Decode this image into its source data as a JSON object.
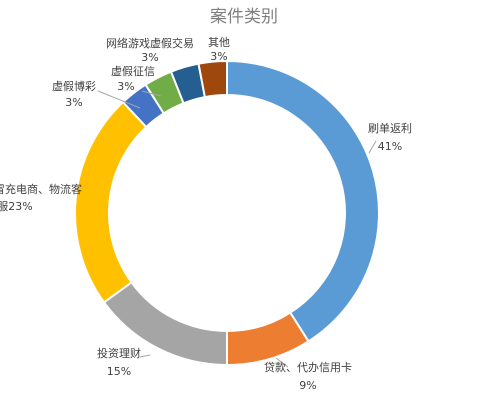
{
  "chart_data": {
    "type": "pie",
    "title": "案件类别",
    "donut": true,
    "slices": [
      {
        "label": "刷单返利",
        "percent_label": "41%",
        "value": 41,
        "color": "#5b9bd5"
      },
      {
        "label": "贷款、代办信用卡",
        "percent_label": "9%",
        "value": 9,
        "color": "#ed7d31"
      },
      {
        "label": "投资理财",
        "percent_label": "15%",
        "value": 15,
        "color": "#a5a5a5"
      },
      {
        "label": "冒充电商、物流客服",
        "percent_label": "23%",
        "value": 23,
        "color": "#ffc000"
      },
      {
        "label": "虚假博彩",
        "percent_label": "3%",
        "value": 3,
        "color": "#4472c4"
      },
      {
        "label": "虚假征信",
        "percent_label": "3%",
        "value": 3,
        "color": "#70ad47"
      },
      {
        "label": "网络游戏虚假交易",
        "percent_label": "3%",
        "value": 3,
        "color": "#255e91"
      },
      {
        "label": "其他",
        "percent_label": "3%",
        "value": 3,
        "color": "#9e480e"
      }
    ]
  }
}
